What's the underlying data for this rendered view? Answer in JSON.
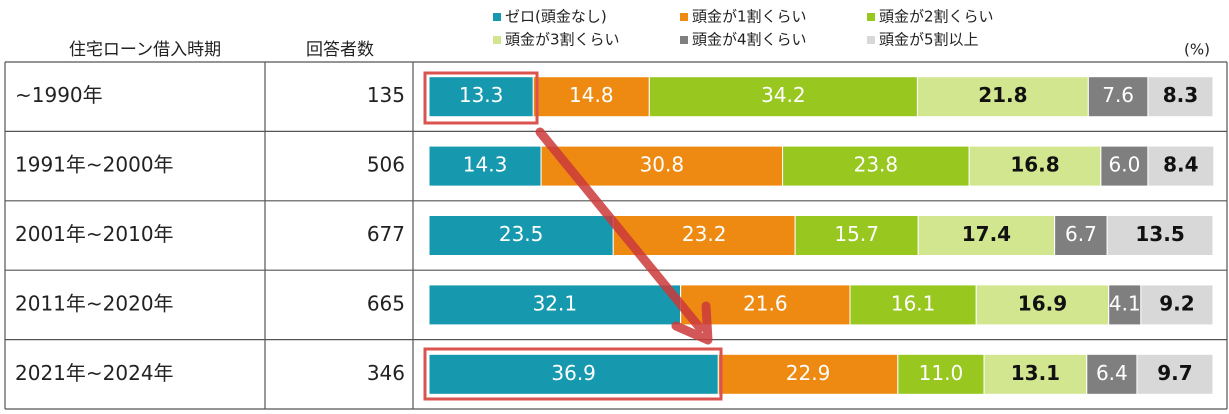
{
  "chart_data": {
    "type": "stacked-bar-100",
    "row_header": "住宅ローン借入時期",
    "count_header": "回答者数",
    "unit": "(%)",
    "categories": [
      "~1990年",
      "1991年~2000年",
      "2001年~2010年",
      "2011年~2020年",
      "2021年~2024年"
    ],
    "counts": [
      "135",
      "506",
      "677",
      "665",
      "346"
    ],
    "xlim": [
      0,
      100
    ],
    "series": [
      {
        "name": "ゼロ(頭金なし)",
        "color": "#1699ae",
        "values": [
          13.3,
          14.3,
          23.5,
          32.1,
          36.9
        ],
        "value_labels": [
          "13.3",
          "14.3",
          "23.5",
          "32.1",
          "36.9"
        ]
      },
      {
        "name": "頭金が1割くらい",
        "color": "#ee8a12",
        "values": [
          14.8,
          30.8,
          23.2,
          21.6,
          22.9
        ],
        "value_labels": [
          "14.8",
          "30.8",
          "23.2",
          "21.6",
          "22.9"
        ]
      },
      {
        "name": "頭金が2割くらい",
        "color": "#98c71f",
        "values": [
          34.2,
          23.8,
          15.7,
          16.1,
          11.0
        ],
        "value_labels": [
          "34.2",
          "23.8",
          "15.7",
          "16.1",
          "11.0"
        ]
      },
      {
        "name": "頭金が3割くらい",
        "color": "#d2e68f",
        "values": [
          21.8,
          16.8,
          17.4,
          16.9,
          13.1
        ],
        "value_labels": [
          "21.8",
          "16.8",
          "17.4",
          "16.9",
          "13.1"
        ]
      },
      {
        "name": "頭金が4割くらい",
        "color": "#7f7f7f",
        "values": [
          7.6,
          6.0,
          6.7,
          4.1,
          6.4
        ],
        "value_labels": [
          "7.6",
          "6.0",
          "6.7",
          "4.1",
          "6.4"
        ]
      },
      {
        "name": "頭金が5割以上",
        "color": "#d8d8d8",
        "values": [
          8.3,
          8.4,
          13.5,
          9.2,
          9.7
        ],
        "value_labels": [
          "8.3",
          "8.4",
          "13.5",
          "9.2",
          "9.7"
        ]
      }
    ]
  }
}
